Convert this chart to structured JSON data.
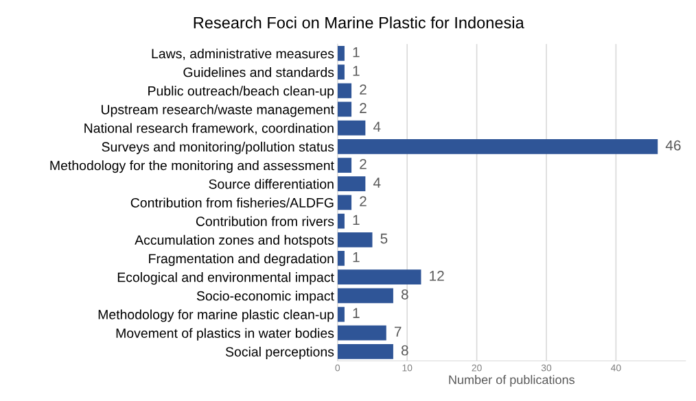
{
  "chart_data": {
    "type": "bar",
    "orientation": "horizontal",
    "title": "Research Foci on Marine Plastic for Indonesia",
    "xlabel": "Number of publications",
    "categories": [
      "Laws, administrative measures",
      "Guidelines and standards",
      "Public outreach/beach clean-up",
      "Upstream research/waste management",
      "National research framework, coordination",
      "Surveys and monitoring/pollution status",
      "Methodology for the monitoring and assessment",
      "Source differentiation",
      "Contribution from fisheries/ALDFG",
      "Contribution from rivers",
      "Accumulation zones and hotspots",
      "Fragmentation and degradation",
      "Ecological and environmental impact",
      "Socio-economic impact",
      "Methodology for marine plastic clean-up",
      "Movement of plastics in water bodies",
      "Social perceptions"
    ],
    "values": [
      1,
      1,
      2,
      2,
      4,
      46,
      2,
      4,
      2,
      1,
      5,
      1,
      12,
      8,
      1,
      7,
      8
    ],
    "color": "#2f5597",
    "xlim": [
      0,
      50
    ],
    "xticks": [
      0,
      10,
      20,
      30,
      40
    ],
    "grid": "x",
    "data_labels": true
  }
}
